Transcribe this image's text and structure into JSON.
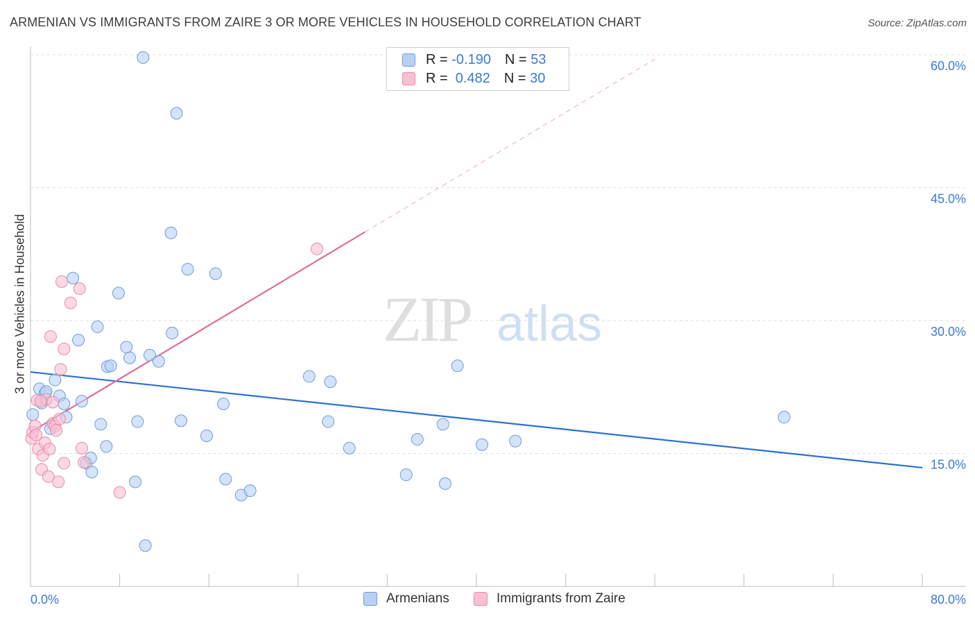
{
  "header": {
    "title": "ARMENIAN VS IMMIGRANTS FROM ZAIRE 3 OR MORE VEHICLES IN HOUSEHOLD CORRELATION CHART",
    "source": "Source: ZipAtlas.com"
  },
  "legend": {
    "rows": [
      {
        "r_label": "R = ",
        "r_value": "-0.190",
        "n_label": "N = ",
        "n_value": "53"
      },
      {
        "r_label": "R = ",
        "r_value": " 0.482",
        "n_label": "N = ",
        "n_value": "30"
      }
    ]
  },
  "watermark": {
    "zip": "ZIP",
    "atlas": "atlas"
  },
  "colors": {
    "blue_fill": "#b8d1f3",
    "blue_stroke": "#6d9be0",
    "blue_line": "#2b6fd1",
    "pink_fill": "#f7c0d2",
    "pink_stroke": "#e889aa",
    "pink_line": "#e06b96",
    "tick_text": "#3a78d6",
    "grid": "#dddddd"
  },
  "chart_data": {
    "type": "scatter",
    "title": "ARMENIAN VS IMMIGRANTS FROM ZAIRE 3 OR MORE VEHICLES IN HOUSEHOLD CORRELATION CHART",
    "xlabel": "",
    "ylabel": "3 or more Vehicles in Household",
    "xlim": [
      0,
      80
    ],
    "ylim": [
      0,
      60
    ],
    "x_tick_labels": [
      "0.0%",
      "80.0%"
    ],
    "y_ticks": [
      15,
      30,
      45,
      60
    ],
    "y_tick_labels": [
      "15.0%",
      "30.0%",
      "45.0%",
      "60.0%"
    ],
    "grid": true,
    "legend_position": "bottom",
    "series": [
      {
        "name": "Armenians",
        "color": "#6d9be0",
        "points": [
          [
            0.2,
            19.4
          ],
          [
            0.8,
            22.3
          ],
          [
            1.0,
            20.7
          ],
          [
            1.3,
            21.8
          ],
          [
            1.4,
            22.0
          ],
          [
            1.8,
            17.8
          ],
          [
            2.2,
            23.3
          ],
          [
            2.6,
            21.5
          ],
          [
            3.0,
            20.6
          ],
          [
            3.2,
            19.1
          ],
          [
            3.8,
            34.8
          ],
          [
            4.3,
            27.8
          ],
          [
            4.6,
            20.9
          ],
          [
            5.0,
            13.9
          ],
          [
            5.4,
            14.5
          ],
          [
            5.5,
            12.9
          ],
          [
            6.0,
            29.3
          ],
          [
            6.3,
            18.3
          ],
          [
            6.8,
            15.8
          ],
          [
            6.9,
            24.8
          ],
          [
            7.2,
            24.9
          ],
          [
            7.9,
            33.1
          ],
          [
            8.6,
            27.0
          ],
          [
            8.9,
            25.8
          ],
          [
            9.4,
            11.8
          ],
          [
            9.6,
            18.6
          ],
          [
            10.1,
            59.7
          ],
          [
            10.3,
            4.6
          ],
          [
            10.7,
            26.1
          ],
          [
            11.5,
            25.4
          ],
          [
            12.6,
            39.9
          ],
          [
            12.7,
            28.6
          ],
          [
            13.1,
            53.4
          ],
          [
            13.5,
            18.7
          ],
          [
            14.1,
            35.8
          ],
          [
            15.8,
            17.0
          ],
          [
            16.6,
            35.3
          ],
          [
            17.3,
            20.6
          ],
          [
            17.5,
            12.1
          ],
          [
            18.9,
            10.3
          ],
          [
            19.7,
            10.8
          ],
          [
            25.0,
            23.7
          ],
          [
            26.7,
            18.6
          ],
          [
            26.9,
            23.1
          ],
          [
            28.6,
            15.6
          ],
          [
            33.7,
            12.6
          ],
          [
            34.7,
            16.6
          ],
          [
            37.0,
            18.3
          ],
          [
            37.2,
            11.6
          ],
          [
            38.3,
            24.9
          ],
          [
            40.5,
            16.0
          ],
          [
            43.5,
            16.4
          ],
          [
            67.6,
            19.1
          ]
        ]
      },
      {
        "name": "Immigrants from Zaire",
        "color": "#e889aa",
        "points": [
          [
            0.1,
            16.7
          ],
          [
            0.2,
            17.4
          ],
          [
            0.4,
            18.1
          ],
          [
            0.5,
            17.1
          ],
          [
            0.6,
            21.0
          ],
          [
            0.7,
            15.5
          ],
          [
            1.0,
            13.2
          ],
          [
            1.1,
            14.8
          ],
          [
            1.3,
            16.2
          ],
          [
            1.4,
            21.1
          ],
          [
            1.6,
            12.4
          ],
          [
            1.7,
            15.5
          ],
          [
            1.8,
            28.2
          ],
          [
            2.0,
            18.4
          ],
          [
            2.0,
            20.8
          ],
          [
            2.2,
            18.1
          ],
          [
            2.3,
            17.6
          ],
          [
            2.5,
            11.8
          ],
          [
            2.6,
            18.9
          ],
          [
            2.7,
            24.5
          ],
          [
            2.8,
            34.4
          ],
          [
            3.0,
            13.9
          ],
          [
            3.0,
            26.8
          ],
          [
            3.6,
            32.0
          ],
          [
            4.4,
            33.6
          ],
          [
            4.6,
            15.6
          ],
          [
            4.8,
            14.0
          ],
          [
            8.0,
            10.6
          ],
          [
            25.7,
            38.1
          ],
          [
            0.9,
            20.9
          ]
        ]
      }
    ],
    "trendlines": [
      {
        "series": "Armenians",
        "x": [
          0,
          80
        ],
        "y": [
          24.2,
          13.4
        ],
        "style": "solid"
      },
      {
        "series": "Immigrants from Zaire",
        "x": [
          0,
          30
        ],
        "y": [
          17.4,
          40.0
        ],
        "style": "solid"
      },
      {
        "series": "Immigrants from Zaire",
        "x": [
          30,
          56
        ],
        "y": [
          40.0,
          59.5
        ],
        "style": "dashed"
      }
    ]
  }
}
